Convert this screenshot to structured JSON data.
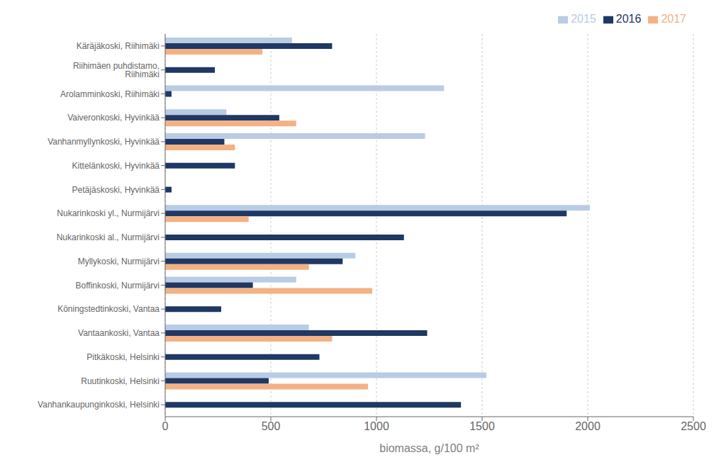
{
  "chart_data": {
    "type": "bar",
    "orientation": "horizontal",
    "categories": [
      "Käräjäkoski, Riihimäki",
      "Riihimäen puhdistamo, Riihimäki",
      "Arolamminkoski, Riihimäki",
      "Vaiveronkoski, Hyvinkää",
      "Vanhanmyllynkoski, Hyvinkää",
      "Kittelänkoski, Hyvinkää",
      "Petäjäskoski, Hyvinkää",
      "Nukarinkoski yl., Nurmijärvi",
      "Nukarinkoski al., Nurmijärvi",
      "Myllykoski, Nurmijärvi",
      "Boffinkoski, Nurmijärvi",
      "Köningstedtinkoski, Vantaa",
      "Vantaankoski, Vantaa",
      "Pitkäkoski, Helsinki",
      "Ruutinkoski, Helsinki",
      "Vanhankaupunginkoski, Helsinki"
    ],
    "series": [
      {
        "name": "2015",
        "color": "#b8cce4",
        "values": [
          600,
          0,
          1320,
          290,
          1230,
          0,
          0,
          2010,
          0,
          900,
          620,
          0,
          680,
          0,
          1520,
          0
        ]
      },
      {
        "name": "2016",
        "color": "#1f3864",
        "values": [
          790,
          235,
          30,
          540,
          280,
          330,
          30,
          1900,
          1130,
          840,
          415,
          265,
          1240,
          730,
          490,
          1400
        ]
      },
      {
        "name": "2017",
        "color": "#f4b183",
        "values": [
          460,
          0,
          0,
          620,
          330,
          0,
          0,
          395,
          0,
          680,
          980,
          0,
          790,
          0,
          960,
          0
        ]
      }
    ],
    "xlabel": "biomassa, g/100 m²",
    "xlim": [
      0,
      2500
    ],
    "xticks": [
      0,
      500,
      1000,
      1500,
      2000,
      2500
    ],
    "grid": true,
    "legend": "upper right"
  }
}
